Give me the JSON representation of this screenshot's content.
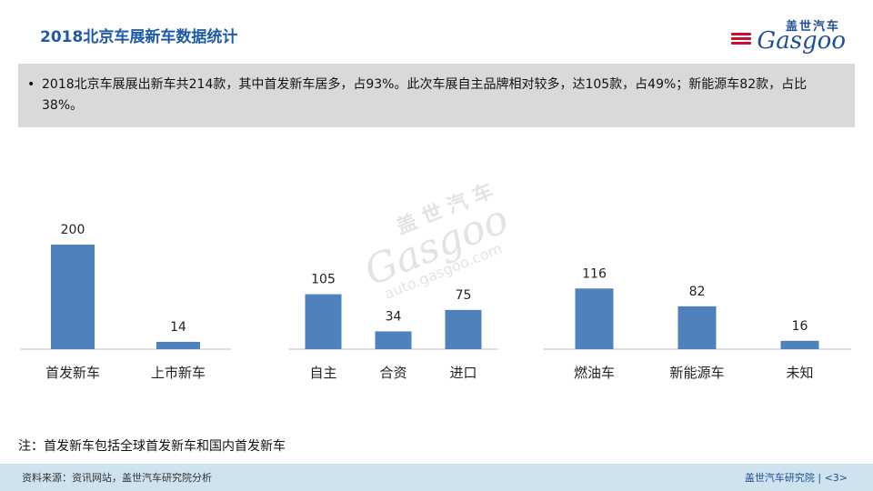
{
  "header": {
    "title": "2018北京车展新车数据统计"
  },
  "logo": {
    "cn": "盖世汽车",
    "en": "Gasgoo"
  },
  "summary": {
    "bullet": "•",
    "text": "2018北京车展展出新车共214款，其中首发新车居多，占93%。此次车展自主品牌相对较多，达105款，占49%；新能源车82款，占比38%。"
  },
  "watermark": {
    "cn": "盖世汽车",
    "en": "Gasgoo",
    "url": "auto.gasgoo.com"
  },
  "chart_data": [
    {
      "type": "bar",
      "categories": [
        "首发新车",
        "上市新车"
      ],
      "values": [
        200,
        14
      ],
      "color": "#4f81bd"
    },
    {
      "type": "bar",
      "categories": [
        "自主",
        "合资",
        "进口"
      ],
      "values": [
        105,
        34,
        75
      ],
      "color": "#4f81bd"
    },
    {
      "type": "bar",
      "categories": [
        "燃油车",
        "新能源车",
        "未知"
      ],
      "values": [
        116,
        82,
        16
      ],
      "color": "#4f81bd"
    }
  ],
  "note": "注：首发新车包括全球首发新车和国内首发新车",
  "footer": {
    "source": "资料来源：资讯网站，盖世汽车研究院分析",
    "org": "盖世汽车研究院",
    "page": "<3>"
  }
}
